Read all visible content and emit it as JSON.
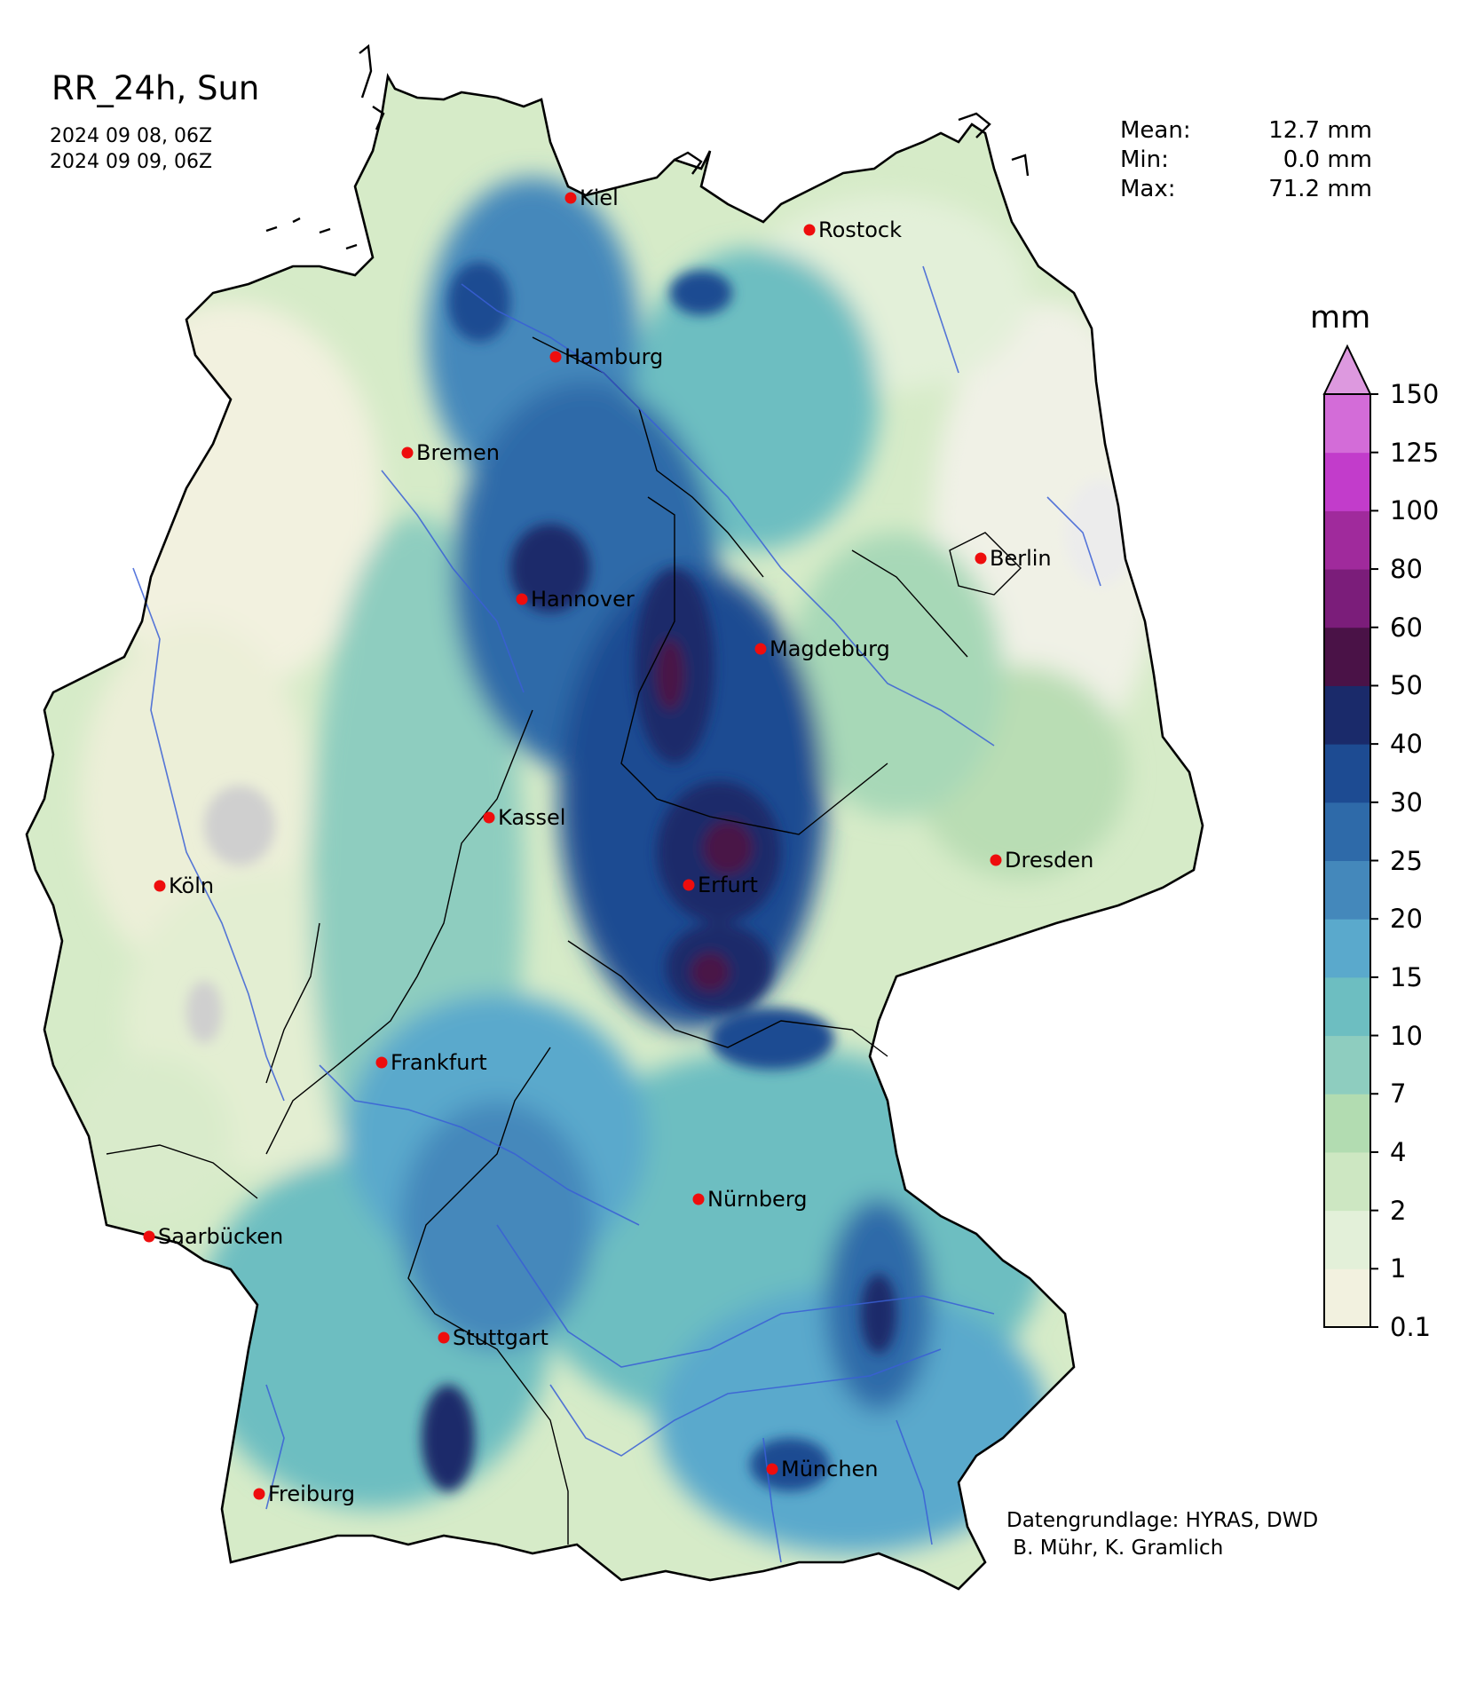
{
  "title": "RR_24h, Sun",
  "period": {
    "start": "2024 09 08, 06Z",
    "end": "2024 09 09, 06Z"
  },
  "stats": [
    {
      "label": "Mean:",
      "value": "12.7 mm"
    },
    {
      "label": "Min:",
      "value": "0.0 mm"
    },
    {
      "label": "Max:",
      "value": "71.2 mm"
    }
  ],
  "legend": {
    "unit": "mm",
    "levels": [
      "0.1",
      "1",
      "2",
      "4",
      "7",
      "10",
      "15",
      "20",
      "25",
      "30",
      "40",
      "50",
      "60",
      "80",
      "100",
      "125",
      "150"
    ],
    "colors": [
      "#f2f1df",
      "#e3f0d9",
      "#cde7c2",
      "#b2dcb1",
      "#8ecdbf",
      "#6dbec1",
      "#5aa9cc",
      "#4488bb",
      "#2e6aa9",
      "#1d4b92",
      "#1a2a6a",
      "#4a1247",
      "#7b1d7a",
      "#a02a9c",
      "#c23ccb",
      "#d36cd8"
    ],
    "extend_color": "#dd99df"
  },
  "cities": [
    {
      "name": "Kiel"
    },
    {
      "name": "Rostock"
    },
    {
      "name": "Hamburg"
    },
    {
      "name": "Bremen"
    },
    {
      "name": "Berlin"
    },
    {
      "name": "Hannover"
    },
    {
      "name": "Magdeburg"
    },
    {
      "name": "Kassel"
    },
    {
      "name": "Dresden"
    },
    {
      "name": "Köln"
    },
    {
      "name": "Erfurt"
    },
    {
      "name": "Frankfurt"
    },
    {
      "name": "Nürnberg"
    },
    {
      "name": "Saarbücken"
    },
    {
      "name": "Stuttgart"
    },
    {
      "name": "München"
    },
    {
      "name": "Freiburg"
    }
  ],
  "credit": {
    "line1": "Datengrundlage: HYRAS, DWD",
    "line2": " B. Mühr, K. Gramlich"
  },
  "colors": {
    "city_dot": "#ee0d0d",
    "river": "#3a5fd6",
    "border": "#000000"
  }
}
